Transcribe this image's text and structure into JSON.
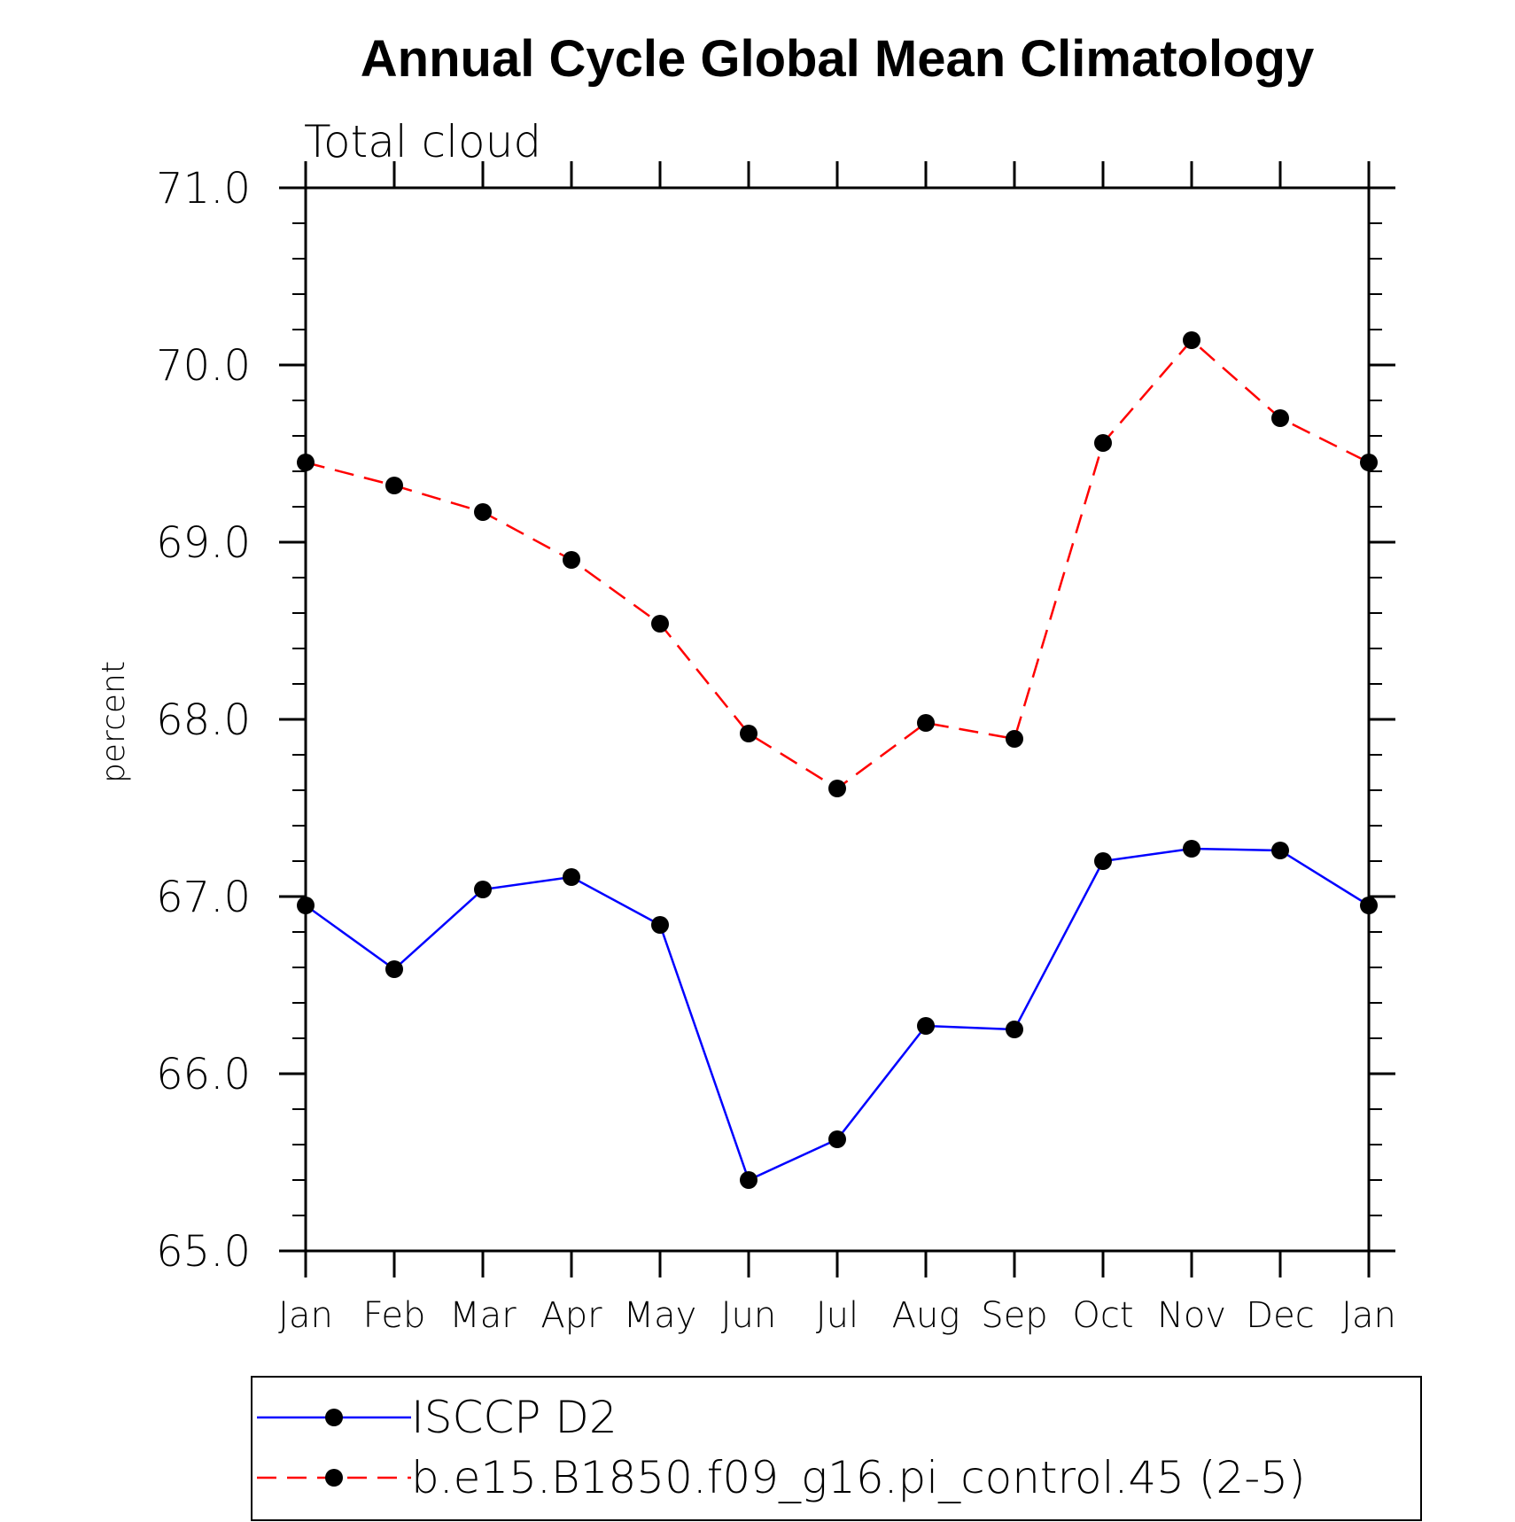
{
  "chart_data": {
    "type": "line",
    "title": "Annual Cycle Global Mean Climatology",
    "subtitle": "Total cloud",
    "xlabel": "",
    "ylabel": "percent",
    "categories": [
      "Jan",
      "Feb",
      "Mar",
      "Apr",
      "May",
      "Jun",
      "Jul",
      "Aug",
      "Sep",
      "Oct",
      "Nov",
      "Dec",
      "Jan"
    ],
    "ylim": [
      65.0,
      71.0
    ],
    "yticks": [
      "65.0",
      "66.0",
      "67.0",
      "68.0",
      "69.0",
      "70.0",
      "71.0"
    ],
    "grid": false,
    "legend_placement": "bottom",
    "series": [
      {
        "name": "ISCCP D2",
        "color": "#0000ff",
        "dash": "solid",
        "marker": "filled-circle",
        "values": [
          66.95,
          66.59,
          67.04,
          67.11,
          66.84,
          65.4,
          65.63,
          66.27,
          66.25,
          67.2,
          67.27,
          67.26,
          66.95
        ]
      },
      {
        "name": "b.e15.B1850.f09_g16.pi_control.45 (2-5)",
        "color": "#ff0000",
        "dash": "dashed",
        "marker": "filled-circle",
        "values": [
          69.45,
          69.32,
          69.17,
          68.9,
          68.54,
          67.92,
          67.61,
          67.98,
          67.89,
          69.56,
          70.14,
          69.7,
          69.45
        ]
      }
    ]
  }
}
